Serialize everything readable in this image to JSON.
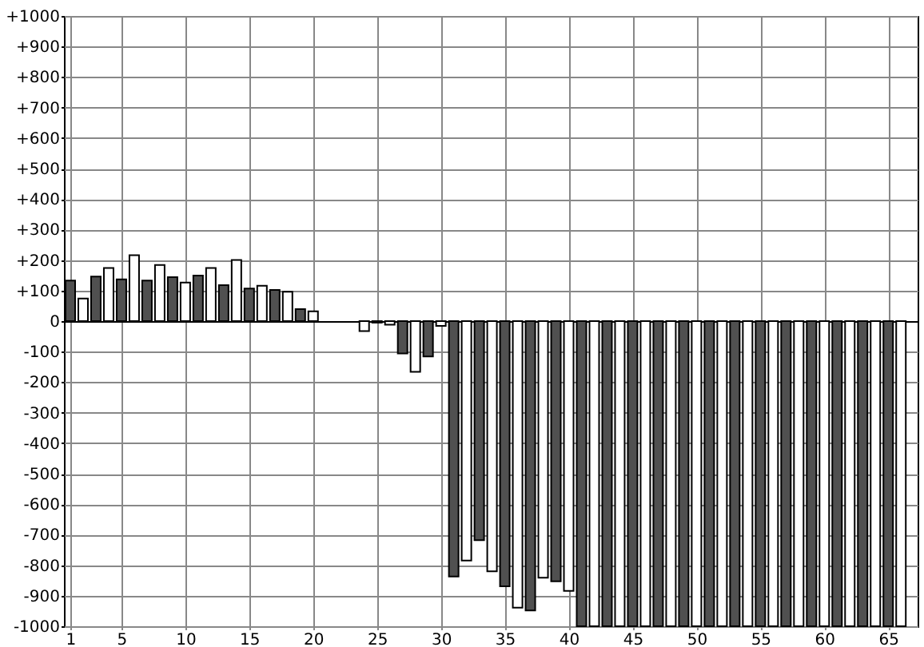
{
  "chart_data": {
    "type": "bar",
    "x": [
      1,
      2,
      3,
      4,
      5,
      6,
      7,
      8,
      9,
      10,
      11,
      12,
      13,
      14,
      15,
      16,
      17,
      18,
      19,
      20,
      21,
      22,
      23,
      24,
      25,
      26,
      27,
      28,
      29,
      30,
      31,
      32,
      33,
      34,
      35,
      36,
      37,
      38,
      39,
      40,
      41,
      42,
      43,
      44,
      45,
      46,
      47,
      48,
      49,
      50,
      51,
      52,
      53,
      54,
      55,
      56,
      57,
      58,
      59,
      60,
      61,
      62,
      63,
      64,
      65,
      66
    ],
    "values": [
      133,
      74,
      146,
      174,
      137,
      216,
      133,
      184,
      144,
      126,
      149,
      174,
      118,
      200,
      107,
      116,
      102,
      96,
      39,
      32,
      null,
      null,
      null,
      -33,
      -5,
      -12,
      -106,
      -166,
      -116,
      -16,
      -837,
      -785,
      -718,
      -820,
      -869,
      -939,
      -948,
      -841,
      -853,
      -884,
      -1000,
      -1000,
      -1000,
      -1000,
      -1000,
      -1000,
      -1000,
      -1000,
      -1000,
      -1000,
      -1000,
      -1000,
      -1000,
      -1000,
      -1000,
      -1000,
      -1000,
      -1000,
      -1000,
      -1000,
      -1000,
      -1000,
      -1000,
      -1000,
      -1000,
      -1000
    ],
    "colors": [
      "#505050",
      "#ffffff",
      "#505050",
      "#ffffff",
      "#505050",
      "#ffffff",
      "#505050",
      "#ffffff",
      "#505050",
      "#ffffff",
      "#505050",
      "#ffffff",
      "#505050",
      "#ffffff",
      "#505050",
      "#ffffff",
      "#505050",
      "#ffffff",
      "#505050",
      "#ffffff",
      "#505050",
      "#ffffff",
      "#505050",
      "#ffffff",
      "#505050",
      "#ffffff",
      "#505050",
      "#ffffff",
      "#505050",
      "#ffffff",
      "#505050",
      "#ffffff",
      "#505050",
      "#ffffff",
      "#505050",
      "#ffffff",
      "#505050",
      "#ffffff",
      "#505050",
      "#ffffff",
      "#505050",
      "#ffffff",
      "#505050",
      "#ffffff",
      "#505050",
      "#ffffff",
      "#505050",
      "#ffffff",
      "#505050",
      "#ffffff",
      "#505050",
      "#ffffff",
      "#505050",
      "#ffffff",
      "#505050",
      "#ffffff",
      "#505050",
      "#ffffff",
      "#505050",
      "#ffffff",
      "#505050",
      "#ffffff",
      "#505050",
      "#ffffff",
      "#505050",
      "#ffffff"
    ],
    "xlim": [
      0.5,
      67.3
    ],
    "xticks": [
      1,
      5,
      10,
      15,
      20,
      25,
      30,
      35,
      40,
      45,
      50,
      55,
      60,
      65
    ],
    "ylim": [
      -1000,
      1000
    ],
    "yticks": [
      {
        "value": -1000,
        "label": "-1000"
      },
      {
        "value": -900,
        "label": "-900"
      },
      {
        "value": -800,
        "label": "-800"
      },
      {
        "value": -700,
        "label": "-700"
      },
      {
        "value": -600,
        "label": "-600"
      },
      {
        "value": -500,
        "label": "-500"
      },
      {
        "value": -400,
        "label": "-400"
      },
      {
        "value": -300,
        "label": "-300"
      },
      {
        "value": -200,
        "label": "-200"
      },
      {
        "value": -100,
        "label": "-100"
      },
      0,
      {
        "value": 100,
        "label": "+100"
      },
      {
        "value": 200,
        "label": "+200"
      },
      {
        "value": 300,
        "label": "+300"
      },
      {
        "value": 400,
        "label": "+400"
      },
      {
        "value": 500,
        "label": "+500"
      },
      {
        "value": 600,
        "label": "+600"
      },
      {
        "value": 700,
        "label": "+700"
      },
      {
        "value": 800,
        "label": "+800"
      },
      {
        "value": 900,
        "label": "+900"
      },
      {
        "value": 1000,
        "label": "+1000"
      }
    ],
    "grid": true
  }
}
